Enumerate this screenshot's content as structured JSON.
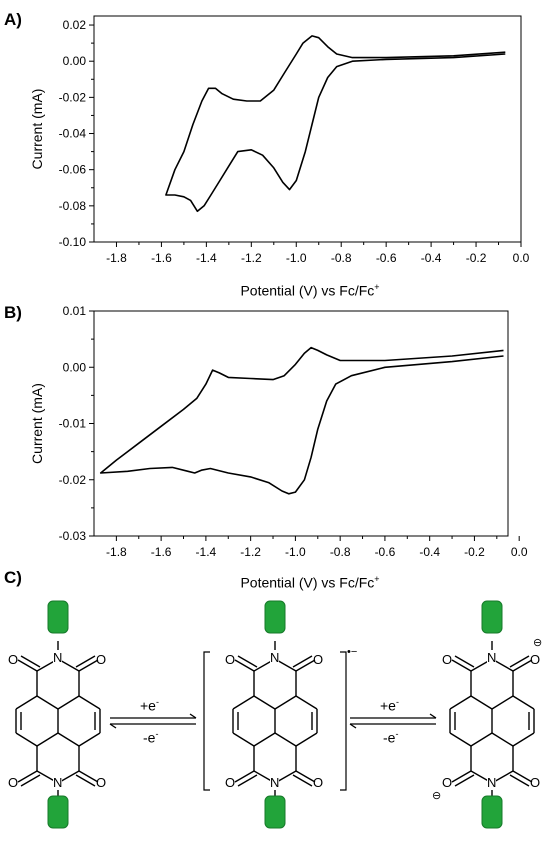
{
  "chart_data": [
    {
      "type": "line",
      "panel_label": "A)",
      "xlabel": "Potential (V) vs Fc/Fc",
      "xlabel_sup": "+",
      "ylabel": "Current (mA)",
      "xlim": [
        -1.9,
        0.0
      ],
      "ylim": [
        -0.1,
        0.025
      ],
      "xticks": [
        -1.8,
        -1.6,
        -1.4,
        -1.2,
        -1.0,
        -0.8,
        -0.6,
        -0.4,
        -0.2,
        0.0
      ],
      "xtick_labels": [
        "-1.8",
        "-1.6",
        "-1.4",
        "-1.2",
        "-1.0",
        "-0.8",
        "-0.6",
        "-0.4",
        "-0.2",
        "0.0"
      ],
      "yticks": [
        0.02,
        0.0,
        -0.02,
        -0.04,
        -0.06,
        -0.08,
        -0.1
      ],
      "ytick_labels": [
        "0.02",
        "0.00",
        "-0.02",
        "-0.04",
        "-0.06",
        "-0.08",
        "-0.10"
      ],
      "grid": false,
      "series": [
        {
          "x": [
            -0.07,
            -0.3,
            -0.6,
            -0.75,
            -0.82,
            -0.86,
            -0.9,
            -0.93,
            -0.96,
            -1.0,
            -1.03,
            -1.06,
            -1.1,
            -1.15,
            -1.2,
            -1.26,
            -1.3,
            -1.34,
            -1.38,
            -1.41,
            -1.44,
            -1.47,
            -1.5,
            -1.54,
            -1.58,
            -1.54,
            -1.5,
            -1.46,
            -1.42,
            -1.39,
            -1.36,
            -1.33,
            -1.28,
            -1.22,
            -1.16,
            -1.1,
            -1.05,
            -1.0,
            -0.97,
            -0.93,
            -0.9,
            -0.86,
            -0.82,
            -0.75,
            -0.6,
            -0.3,
            -0.07
          ],
          "y": [
            0.004,
            0.002,
            0.001,
            0.0,
            -0.003,
            -0.009,
            -0.02,
            -0.035,
            -0.05,
            -0.066,
            -0.071,
            -0.067,
            -0.059,
            -0.052,
            -0.049,
            -0.05,
            -0.058,
            -0.066,
            -0.074,
            -0.08,
            -0.083,
            -0.077,
            -0.075,
            -0.074,
            -0.074,
            -0.06,
            -0.05,
            -0.035,
            -0.022,
            -0.015,
            -0.015,
            -0.018,
            -0.021,
            -0.022,
            -0.022,
            -0.016,
            -0.006,
            0.004,
            0.01,
            0.014,
            0.013,
            0.008,
            0.004,
            0.002,
            0.002,
            0.003,
            0.005
          ]
        }
      ]
    },
    {
      "type": "line",
      "panel_label": "B)",
      "xlabel": "Potential (V) vs Fc/Fc",
      "xlabel_sup": "+",
      "ylabel": "Current (mA)",
      "xlim": [
        -1.9,
        -0.05
      ],
      "ylim": [
        -0.03,
        0.01
      ],
      "xticks": [
        -1.8,
        -1.6,
        -1.4,
        -1.2,
        -1.0,
        -0.8,
        -0.6,
        -0.4,
        -0.2,
        0.0
      ],
      "xtick_labels": [
        "-1.8",
        "-1.6",
        "-1.4",
        "-1.2",
        "-1.0",
        "-0.8",
        "-0.6",
        "-0.4",
        "-0.2",
        "0.0"
      ],
      "yticks": [
        0.01,
        0.0,
        -0.01,
        -0.02,
        -0.03
      ],
      "ytick_labels": [
        "0.01",
        "0.00",
        "-0.01",
        "-0.02",
        "-0.03"
      ],
      "grid": false,
      "series": [
        {
          "x": [
            -0.07,
            -0.3,
            -0.6,
            -0.75,
            -0.82,
            -0.86,
            -0.9,
            -0.93,
            -0.96,
            -1.0,
            -1.03,
            -1.06,
            -1.12,
            -1.2,
            -1.3,
            -1.38,
            -1.42,
            -1.45,
            -1.48,
            -1.55,
            -1.65,
            -1.75,
            -1.87,
            -1.8,
            -1.7,
            -1.6,
            -1.5,
            -1.44,
            -1.4,
            -1.37,
            -1.34,
            -1.3,
            -1.2,
            -1.1,
            -1.05,
            -1.0,
            -0.96,
            -0.93,
            -0.9,
            -0.86,
            -0.8,
            -0.6,
            -0.3,
            -0.07
          ],
          "y": [
            0.002,
            0.001,
            0.0,
            -0.0015,
            -0.003,
            -0.006,
            -0.011,
            -0.016,
            -0.02,
            -0.0222,
            -0.0225,
            -0.022,
            -0.0205,
            -0.0195,
            -0.0188,
            -0.018,
            -0.0183,
            -0.0188,
            -0.0185,
            -0.0178,
            -0.018,
            -0.0185,
            -0.0188,
            -0.0165,
            -0.0135,
            -0.0105,
            -0.0075,
            -0.0055,
            -0.003,
            -0.0005,
            -0.001,
            -0.0018,
            -0.002,
            -0.0022,
            -0.0015,
            0.0005,
            0.0025,
            0.0035,
            0.003,
            0.0022,
            0.0012,
            0.0012,
            0.002,
            0.003
          ]
        }
      ]
    }
  ],
  "figure": {
    "panel_c_label": "C)",
    "arrow1_top": "+e",
    "arrow1_bottom": "-e",
    "arrow2_top": "+e",
    "arrow2_bottom": "-e",
    "superscript_minus": "-",
    "radical_anion_charge": "•−",
    "atom_O": "O",
    "atom_N": "N",
    "anion_charge": "⊖",
    "substituent_color": "#22a43a"
  }
}
